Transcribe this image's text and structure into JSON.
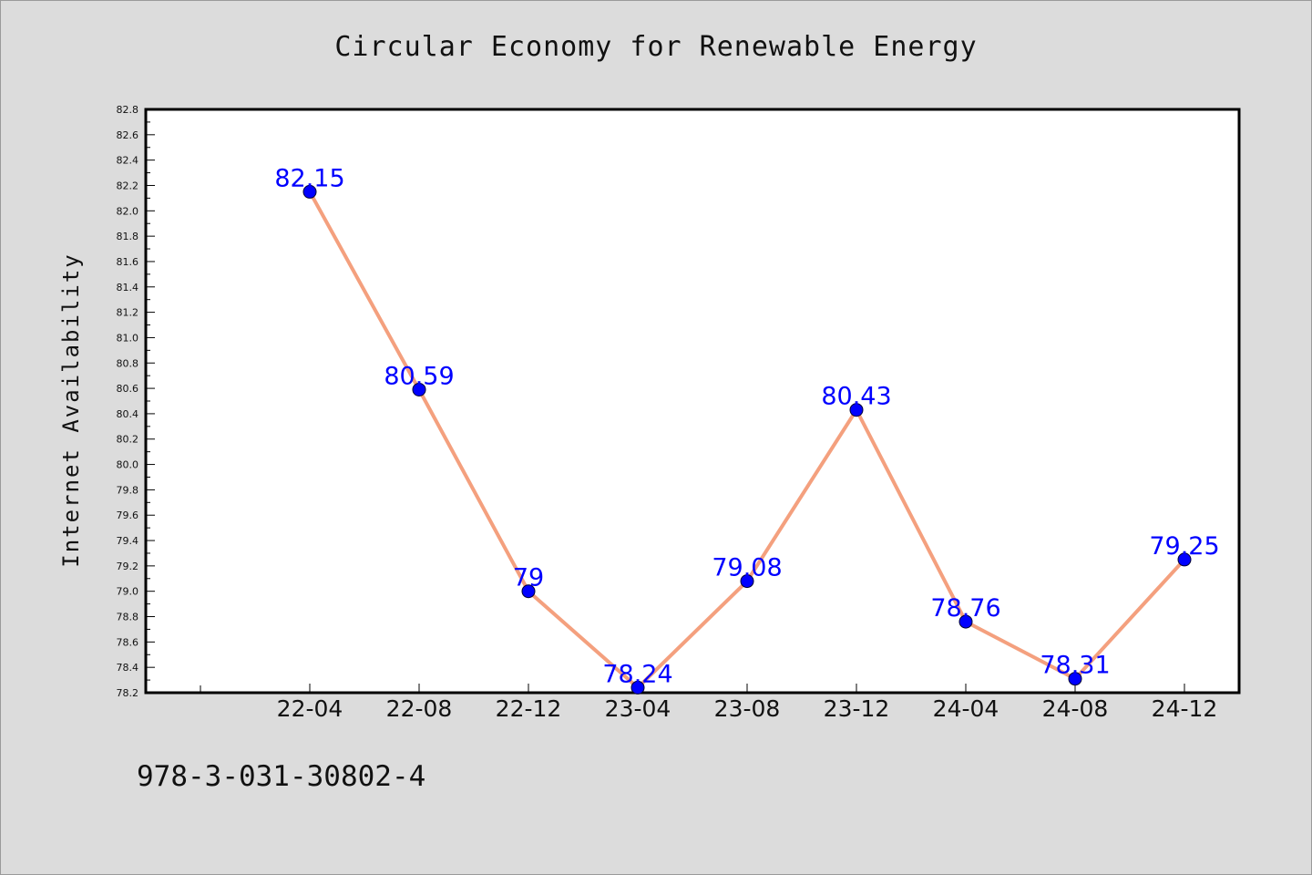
{
  "chart_data": {
    "type": "line",
    "title": "Circular Economy for Renewable Energy",
    "xlabel": "",
    "ylabel": "Internet Availability",
    "categories": [
      "22-04",
      "22-08",
      "22-12",
      "23-04",
      "23-08",
      "23-12",
      "24-04",
      "24-08",
      "24-12"
    ],
    "series": [
      {
        "values": [
          82.15,
          80.59,
          79,
          78.24,
          79.08,
          80.43,
          78.76,
          78.31,
          79.25
        ],
        "labels": [
          "82.15",
          "80.59",
          "79",
          "78.24",
          "79.08",
          "80.43",
          "78.76",
          "78.31",
          "79.25"
        ],
        "line_color": "#f4a07e",
        "marker_color": "#0000ff",
        "label_color": "#0000ff"
      }
    ],
    "ylim": [
      78.2,
      82.8
    ],
    "y_ticks": [
      "78.2",
      "78.4",
      "78.6",
      "78.8",
      "79.0",
      "79.2",
      "79.4",
      "79.6",
      "79.8",
      "80.0",
      "80.2",
      "80.4",
      "80.6",
      "80.8",
      "81.0",
      "81.2",
      "81.4",
      "81.6",
      "81.8",
      "82.0",
      "82.2",
      "82.4",
      "82.6",
      "82.8"
    ],
    "grid": false,
    "legend": "none"
  },
  "footer": {
    "text": "978-3-031-30802-4"
  }
}
